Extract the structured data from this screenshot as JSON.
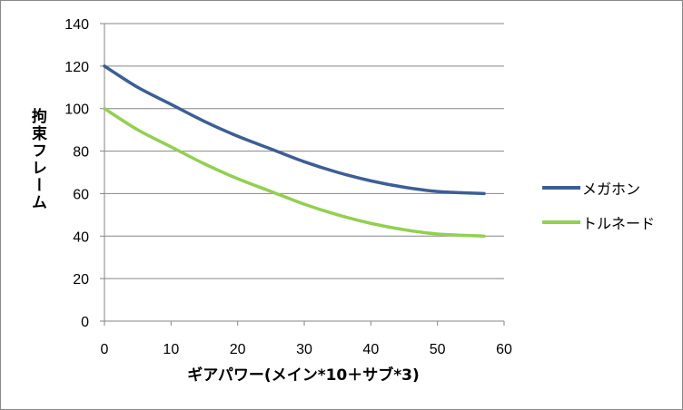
{
  "chart_data": {
    "type": "line",
    "title": "",
    "xlabel": "ギアパワー(メイン*10＋サブ*3)",
    "ylabel": "拘束フレーム",
    "xlim": [
      0,
      60
    ],
    "ylim": [
      0,
      140
    ],
    "xticks": [
      "0",
      "10",
      "20",
      "30",
      "40",
      "50",
      "60"
    ],
    "yticks": [
      "0",
      "20",
      "40",
      "60",
      "80",
      "100",
      "120",
      "140"
    ],
    "grid": "horizontal",
    "legend_position": "right",
    "x": [
      0,
      5,
      10,
      15,
      20,
      25,
      30,
      35,
      40,
      45,
      50,
      57
    ],
    "series": [
      {
        "name": "メガホン",
        "color": "#3c5f93",
        "values": [
          120,
          110,
          102,
          94,
          87,
          81,
          75,
          70,
          66,
          63,
          61,
          60
        ]
      },
      {
        "name": "トルネード",
        "color": "#92d050",
        "values": [
          100,
          90,
          82,
          74,
          67,
          61,
          55,
          50,
          46,
          43,
          41,
          40
        ]
      }
    ]
  }
}
